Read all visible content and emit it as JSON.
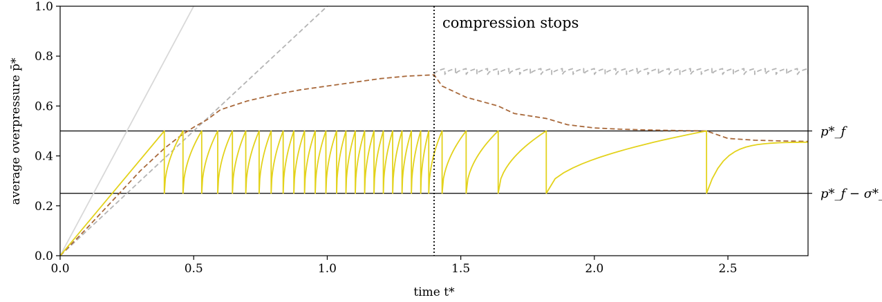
{
  "chart_data": {
    "type": "line",
    "title": "",
    "xlabel": "time t*",
    "ylabel": "average overpressure p̄*",
    "xlim": [
      0.0,
      2.8
    ],
    "ylim": [
      0.0,
      1.0
    ],
    "grid": false,
    "legend": "none",
    "xticks": [
      {
        "value": 0.0,
        "label": "0.0"
      },
      {
        "value": 0.5,
        "label": "0.5"
      },
      {
        "value": 1.0,
        "label": "1.0"
      },
      {
        "value": 1.5,
        "label": "1.5"
      },
      {
        "value": 2.0,
        "label": "2.0"
      },
      {
        "value": 2.5,
        "label": "2.5"
      }
    ],
    "yticks": [
      {
        "value": 0.0,
        "label": "0.0"
      },
      {
        "value": 0.2,
        "label": "0.2"
      },
      {
        "value": 0.4,
        "label": "0.4"
      },
      {
        "value": 0.6,
        "label": "0.6"
      },
      {
        "value": 0.8,
        "label": "0.8"
      },
      {
        "value": 1.0,
        "label": "1.0"
      }
    ],
    "hlines": [
      {
        "y": 0.5,
        "label": "p*_f",
        "color": "#000000"
      },
      {
        "y": 0.25,
        "label": "p*_f − σ*_T",
        "color": "#000000"
      }
    ],
    "vline": {
      "x": 1.4,
      "label": "compression stops",
      "color": "#000000",
      "style": "dotted"
    },
    "series": [
      {
        "style": "solid",
        "color": "#d8d8d8",
        "x": [
          0.0,
          0.5
        ],
        "y": [
          0.0,
          1.0
        ]
      },
      {
        "style": "dashed",
        "color": "#b4b4b4",
        "x": [
          0.0,
          1.0
        ],
        "y": [
          0.0,
          1.0
        ]
      },
      {
        "style": "dashed-sawtooth",
        "color": "#b4b4b4",
        "x": [
          1.4,
          1.44,
          1.48,
          1.52,
          1.56,
          1.6,
          1.64,
          1.68,
          1.72,
          1.76,
          1.8,
          1.84,
          1.88,
          1.92,
          1.96,
          2.0,
          2.04,
          2.08,
          2.12,
          2.16,
          2.2,
          2.24,
          2.28,
          2.32,
          2.36,
          2.4,
          2.44,
          2.48,
          2.52,
          2.56,
          2.6,
          2.64,
          2.68,
          2.72,
          2.76,
          2.8
        ],
        "y_low": 0.727,
        "y_high": 0.75
      },
      {
        "style": "dashed",
        "color": "#a8683a",
        "x": [
          0.0,
          0.1,
          0.2,
          0.3,
          0.39,
          0.45,
          0.5,
          0.55,
          0.6,
          0.7,
          0.8,
          0.9,
          1.0,
          1.1,
          1.2,
          1.3,
          1.4,
          1.43,
          1.52,
          1.64,
          1.7,
          1.82,
          1.9,
          2.0,
          2.1,
          2.2,
          2.3,
          2.42,
          2.5,
          2.6,
          2.7,
          2.8
        ],
        "y": [
          0.0,
          0.11,
          0.225,
          0.34,
          0.43,
          0.48,
          0.515,
          0.545,
          0.585,
          0.62,
          0.645,
          0.665,
          0.68,
          0.695,
          0.71,
          0.72,
          0.725,
          0.68,
          0.635,
          0.6,
          0.57,
          0.55,
          0.525,
          0.512,
          0.507,
          0.504,
          0.502,
          0.5,
          0.47,
          0.463,
          0.46,
          0.458
        ]
      },
      {
        "style": "solid-sawtooth",
        "color": "#e3d21b",
        "ramp": {
          "x": [
            0.0,
            0.39
          ],
          "y": [
            0.0,
            0.5
          ]
        },
        "resets": [
          0.39,
          0.46,
          0.53,
          0.59,
          0.645,
          0.695,
          0.745,
          0.79,
          0.835,
          0.875,
          0.915,
          0.955,
          0.995,
          1.035,
          1.07,
          1.105,
          1.14,
          1.175,
          1.21,
          1.245,
          1.28,
          1.315,
          1.35,
          1.38,
          1.43,
          1.52,
          1.64,
          1.82,
          2.42
        ],
        "y_low": 0.25,
        "y_high": 0.5,
        "y_end": 0.455
      }
    ]
  }
}
